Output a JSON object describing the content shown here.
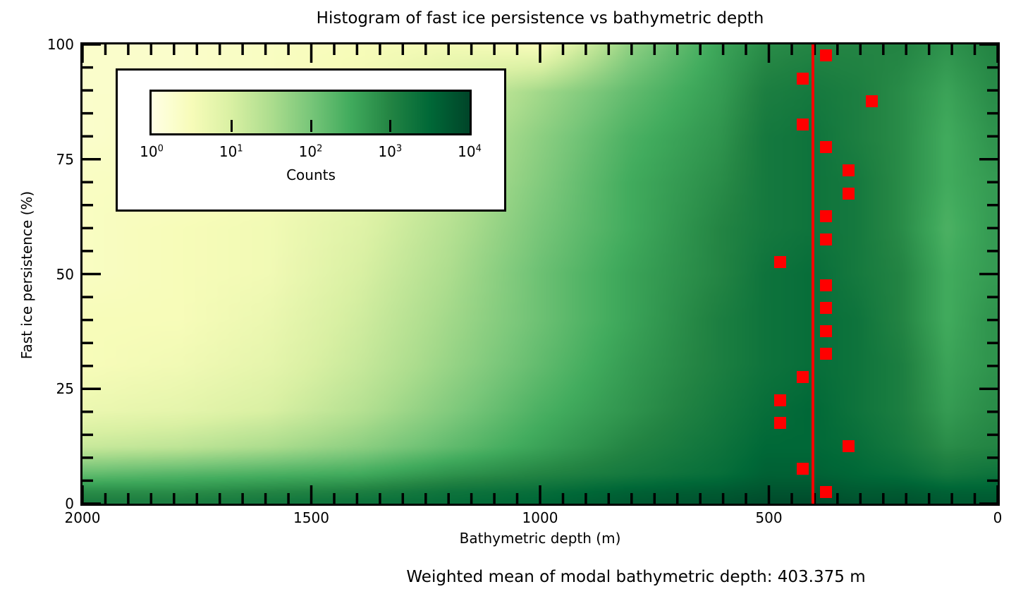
{
  "title": "Histogram of fast ice persistence vs bathymetric depth",
  "caption": "Weighted mean of modal bathymetric depth: 403.375 m",
  "chart_data": {
    "type": "heatmap",
    "title": "Histogram of fast ice persistence vs bathymetric depth",
    "xlabel": "Bathymetric depth (m)",
    "ylabel": "Fast ice persistence (%)",
    "x_axis": {
      "min": 0,
      "max": 2000,
      "reversed": true,
      "major_ticks": [
        2000,
        1500,
        1000,
        500,
        0
      ],
      "tick_labels": [
        "2000",
        "1500",
        "1000",
        "500",
        "0"
      ],
      "minor_tick_step": 50
    },
    "y_axis": {
      "min": 0,
      "max": 100,
      "major_ticks": [
        0,
        25,
        50,
        75,
        100
      ],
      "tick_labels": [
        "0",
        "25",
        "50",
        "75",
        "100"
      ],
      "minor_tick_step": 5
    },
    "colorbar": {
      "label": "Counts",
      "scale": "log10",
      "min": 1,
      "max": 10000,
      "tick_base": "10",
      "tick_exponents": [
        "0",
        "1",
        "2",
        "3",
        "4"
      ]
    },
    "colormap": {
      "name": "YlGn",
      "stops": [
        "#ffffe5",
        "#f7fcb9",
        "#d9f0a3",
        "#addd8e",
        "#78c679",
        "#41ab5d",
        "#238443",
        "#006837",
        "#004529"
      ]
    },
    "heatmap_grid": {
      "comment": "approximate log10(counts) field, depth columns left-to-right 2000->0 m, persistence rows top-to-bottom 100->0 %",
      "depth_cols": [
        2000,
        1800,
        1600,
        1400,
        1200,
        1000,
        800,
        600,
        500,
        400,
        300,
        200,
        100,
        0
      ],
      "persistence_rows": [
        100,
        90,
        80,
        70,
        60,
        50,
        40,
        30,
        20,
        12,
        6,
        2,
        0
      ],
      "log10_counts": [
        [
          0.3,
          0.3,
          0.4,
          0.5,
          0.6,
          0.5,
          1.8,
          2.6,
          2.9,
          3.0,
          3.0,
          3.0,
          2.8,
          3.0
        ],
        [
          0.3,
          0.3,
          0.4,
          0.6,
          1.0,
          1.6,
          2.2,
          2.7,
          3.1,
          3.2,
          3.1,
          2.9,
          2.6,
          2.9
        ],
        [
          0.3,
          0.4,
          0.5,
          0.7,
          1.2,
          1.8,
          2.4,
          2.8,
          3.2,
          3.3,
          3.1,
          2.9,
          2.5,
          2.8
        ],
        [
          0.4,
          0.4,
          0.5,
          0.8,
          1.3,
          1.9,
          2.5,
          2.9,
          3.2,
          3.3,
          3.2,
          2.9,
          2.5,
          2.7
        ],
        [
          0.4,
          0.5,
          0.6,
          0.9,
          1.4,
          2.0,
          2.5,
          3.0,
          3.2,
          3.3,
          3.2,
          2.9,
          2.4,
          2.7
        ],
        [
          0.4,
          0.5,
          0.6,
          1.0,
          1.5,
          2.1,
          2.6,
          3.0,
          3.3,
          3.4,
          3.2,
          3.0,
          2.5,
          2.7
        ],
        [
          0.5,
          0.5,
          0.7,
          1.1,
          1.6,
          2.1,
          2.6,
          3.1,
          3.3,
          3.4,
          3.3,
          3.0,
          2.5,
          2.8
        ],
        [
          0.5,
          0.6,
          0.8,
          1.2,
          1.7,
          2.2,
          2.7,
          3.1,
          3.3,
          3.4,
          3.3,
          3.1,
          2.6,
          2.8
        ],
        [
          0.7,
          0.8,
          1.0,
          1.4,
          1.9,
          2.4,
          2.8,
          3.2,
          3.4,
          3.5,
          3.3,
          3.1,
          2.7,
          2.9
        ],
        [
          1.2,
          1.3,
          1.5,
          1.8,
          2.2,
          2.6,
          3.0,
          3.3,
          3.5,
          3.5,
          3.4,
          3.2,
          2.9,
          3.0
        ],
        [
          2.2,
          2.3,
          2.4,
          2.5,
          2.8,
          3.0,
          3.2,
          3.4,
          3.6,
          3.6,
          3.5,
          3.4,
          3.2,
          3.3
        ],
        [
          2.9,
          2.9,
          3.0,
          3.1,
          3.3,
          3.4,
          3.6,
          3.7,
          3.8,
          3.8,
          3.7,
          3.7,
          3.6,
          3.6
        ],
        [
          3.1,
          3.1,
          3.2,
          3.3,
          3.4,
          3.5,
          3.7,
          3.8,
          3.9,
          3.9,
          3.8,
          3.8,
          3.7,
          3.7
        ]
      ]
    },
    "modal_points": {
      "marker": "square",
      "color": "#ff0000",
      "points": [
        {
          "persistence": 97.5,
          "depth": 375
        },
        {
          "persistence": 92.5,
          "depth": 425
        },
        {
          "persistence": 87.5,
          "depth": 275
        },
        {
          "persistence": 82.5,
          "depth": 425
        },
        {
          "persistence": 77.5,
          "depth": 375
        },
        {
          "persistence": 72.5,
          "depth": 325
        },
        {
          "persistence": 67.5,
          "depth": 325
        },
        {
          "persistence": 62.5,
          "depth": 375
        },
        {
          "persistence": 57.5,
          "depth": 375
        },
        {
          "persistence": 52.5,
          "depth": 475
        },
        {
          "persistence": 47.5,
          "depth": 375
        },
        {
          "persistence": 42.5,
          "depth": 375
        },
        {
          "persistence": 37.5,
          "depth": 375
        },
        {
          "persistence": 32.5,
          "depth": 375
        },
        {
          "persistence": 27.5,
          "depth": 425
        },
        {
          "persistence": 22.5,
          "depth": 475
        },
        {
          "persistence": 17.5,
          "depth": 475
        },
        {
          "persistence": 12.5,
          "depth": 325
        },
        {
          "persistence": 7.5,
          "depth": 425
        },
        {
          "persistence": 2.5,
          "depth": 375
        }
      ]
    },
    "mean_line": {
      "color": "#ff0000",
      "depth": 403.375
    }
  }
}
